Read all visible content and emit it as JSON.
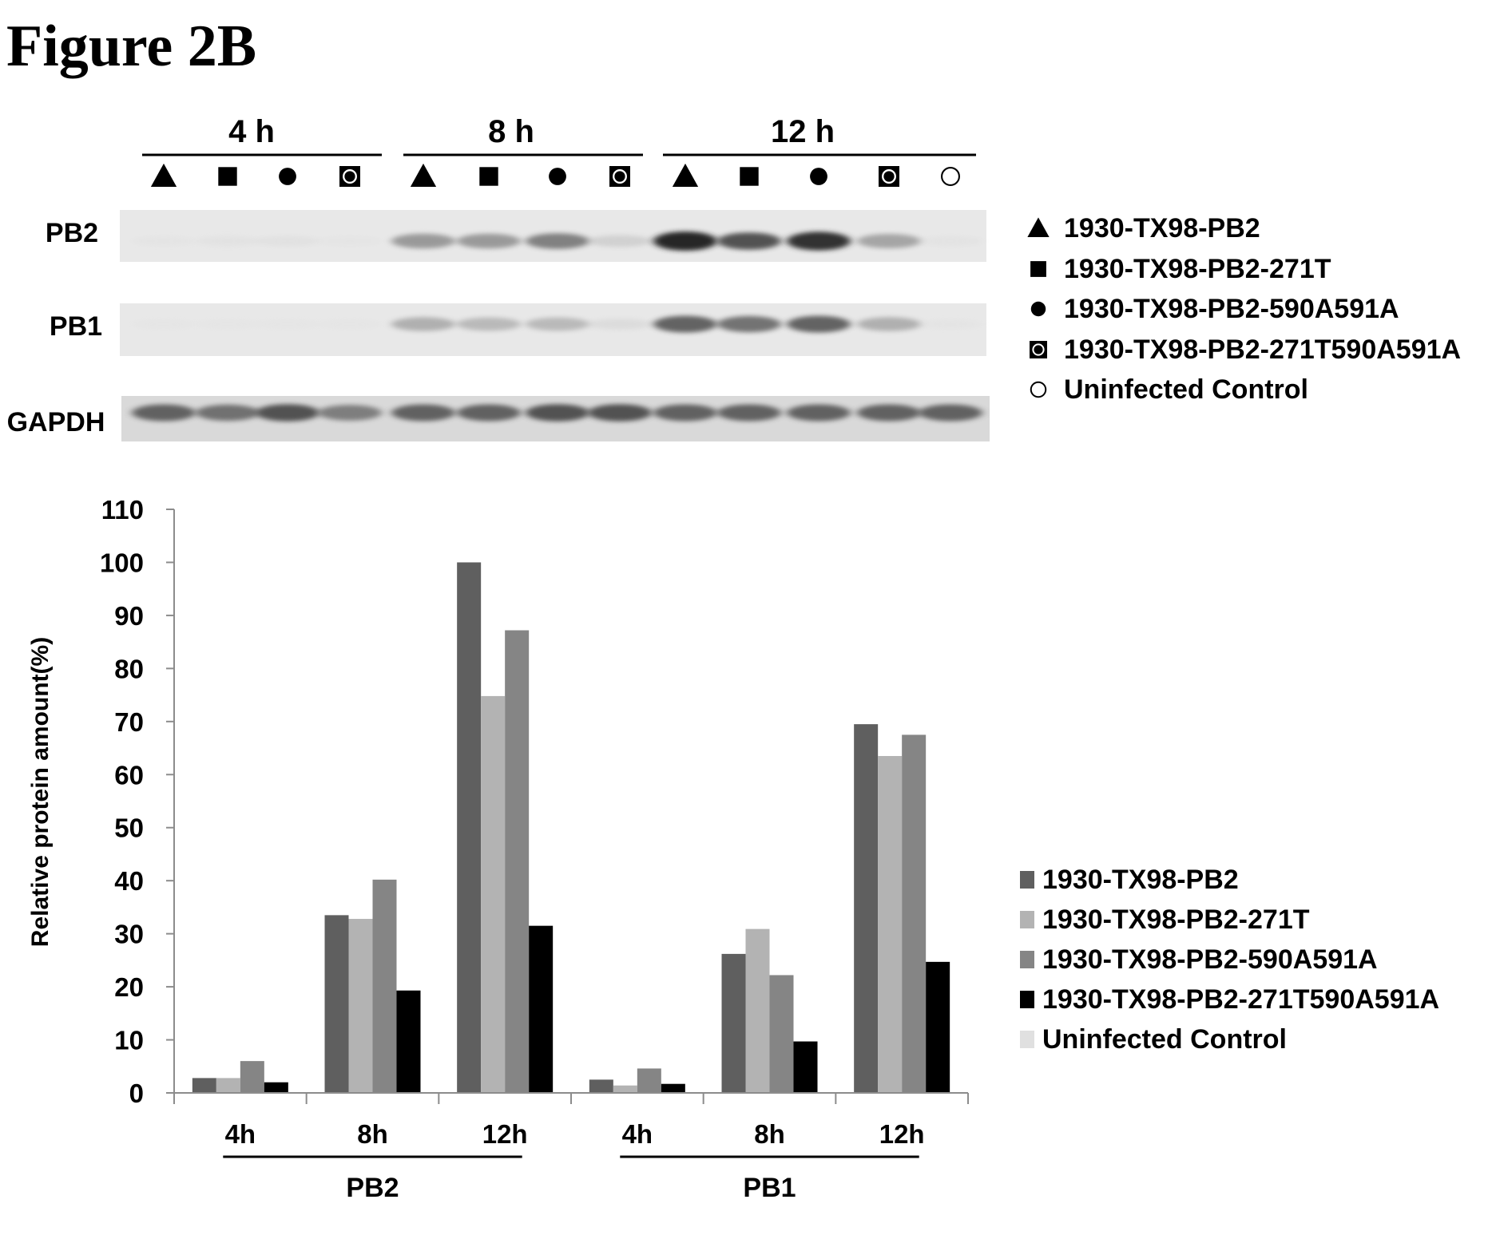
{
  "figure_title": "Figure 2B",
  "blot": {
    "time_groups": [
      "4 h",
      "8 h",
      "12 h"
    ],
    "rows": [
      "PB2",
      "PB1",
      "GAPDH"
    ],
    "lanes": [
      {
        "group": "4 h",
        "marker": "triangle"
      },
      {
        "group": "4 h",
        "marker": "square"
      },
      {
        "group": "4 h",
        "marker": "circle"
      },
      {
        "group": "4 h",
        "marker": "boxed-circle"
      },
      {
        "group": "8 h",
        "marker": "triangle"
      },
      {
        "group": "8 h",
        "marker": "square"
      },
      {
        "group": "8 h",
        "marker": "circle"
      },
      {
        "group": "8 h",
        "marker": "boxed-circle"
      },
      {
        "group": "12 h",
        "marker": "triangle"
      },
      {
        "group": "12 h",
        "marker": "square"
      },
      {
        "group": "12 h",
        "marker": "circle"
      },
      {
        "group": "12 h",
        "marker": "boxed-circle"
      },
      {
        "group": "12 h",
        "marker": "open-circle"
      }
    ],
    "band_intensity": {
      "PB2": [
        0.04,
        0.07,
        0.09,
        0.03,
        0.55,
        0.55,
        0.65,
        0.25,
        1.0,
        0.8,
        0.95,
        0.5,
        0.06
      ],
      "PB1": [
        0.02,
        0.02,
        0.02,
        0.02,
        0.45,
        0.4,
        0.4,
        0.15,
        0.75,
        0.7,
        0.75,
        0.45,
        0.04
      ],
      "GAPDH": [
        0.75,
        0.7,
        0.8,
        0.65,
        0.75,
        0.75,
        0.8,
        0.8,
        0.75,
        0.75,
        0.75,
        0.75,
        0.75
      ]
    },
    "legend": [
      {
        "marker": "triangle",
        "label": "1930-TX98-PB2"
      },
      {
        "marker": "square",
        "label": "1930-TX98-PB2-271T"
      },
      {
        "marker": "circle",
        "label": "1930-TX98-PB2-590A591A"
      },
      {
        "marker": "boxed-circle",
        "label": "1930-TX98-PB2-271T590A591A"
      },
      {
        "marker": "open-circle",
        "label": "Uninfected Control"
      }
    ]
  },
  "chart_data": {
    "type": "bar",
    "ylabel": "Relative protein amount(%)",
    "ylim": [
      0,
      110
    ],
    "yticks": [
      0,
      10,
      20,
      30,
      40,
      50,
      60,
      70,
      80,
      90,
      100,
      110
    ],
    "groups": [
      {
        "protein": "PB2",
        "categories": [
          "4h",
          "8h",
          "12h"
        ]
      },
      {
        "protein": "PB1",
        "categories": [
          "4h",
          "8h",
          "12h"
        ]
      }
    ],
    "series": [
      {
        "name": "1930-TX98-PB2",
        "color": "#5f5f5f",
        "values": [
          2.8,
          33.5,
          100,
          2.5,
          26.2,
          69.5
        ]
      },
      {
        "name": " 1930-TX98-PB2-271T",
        "color": "#b3b3b3",
        "values": [
          2.8,
          32.8,
          74.8,
          1.4,
          30.9,
          63.5
        ]
      },
      {
        "name": "1930-TX98-PB2-590A591A",
        "color": "#858585",
        "values": [
          6.0,
          40.2,
          87.2,
          4.6,
          22.2,
          67.5
        ]
      },
      {
        "name": "1930-TX98-PB2-271T590A591A",
        "color": "#000000",
        "values": [
          2.0,
          19.3,
          31.5,
          1.7,
          9.7,
          24.7
        ]
      },
      {
        "name": "Uninfected Control",
        "color": "#e0e0e0",
        "values": [
          0,
          0,
          0,
          0,
          0,
          0
        ]
      }
    ],
    "legend_position": "right"
  }
}
